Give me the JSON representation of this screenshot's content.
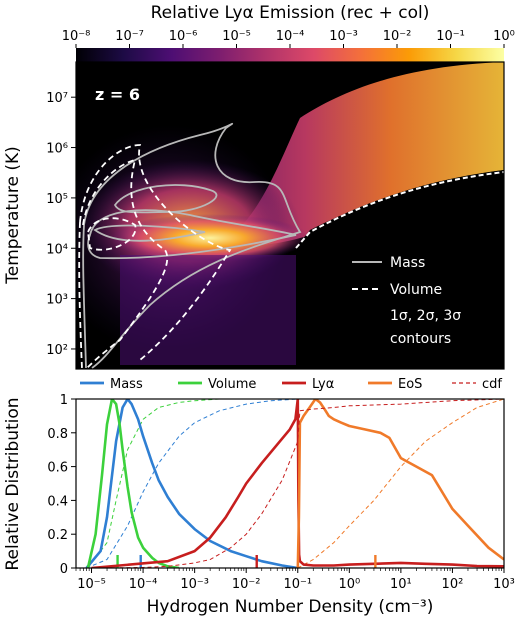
{
  "chart_data": [
    {
      "type": "heatmap",
      "title": "Relative Lyα Emission  (rec + col)",
      "annotation": "z = 6",
      "ylabel": "Temperature  (K)",
      "colorbar": {
        "label": "Relative Lyα Emission  (rec + col)",
        "scale": "log",
        "range": [
          1e-08,
          1
        ],
        "tick_labels": [
          "10⁻⁸",
          "10⁻⁷",
          "10⁻⁶",
          "10⁻⁵",
          "10⁻⁴",
          "10⁻³",
          "10⁻²",
          "10⁻¹",
          "10⁰"
        ],
        "colormap": [
          "#000004",
          "#1d0b45",
          "#4d0e73",
          "#7c1d6f",
          "#b0336a",
          "#dd4968",
          "#f4703a",
          "#fb9b06",
          "#f6d746",
          "#fcffa4"
        ]
      },
      "x_scale": "log",
      "x_range": [
        5e-06,
        1000
      ],
      "y_scale": "log",
      "y_range": [
        40,
        50000000.0
      ],
      "y_tick_labels": [
        "10²",
        "10³",
        "10⁴",
        "10⁵",
        "10⁶",
        "10⁷"
      ],
      "y_tick_values": [
        100,
        1000,
        10000,
        100000,
        1000000,
        10000000
      ],
      "legend": {
        "placement": "center-right",
        "entries": [
          {
            "label": "Mass",
            "style": "solid",
            "color": "#b0b0b0"
          },
          {
            "label": "Volume",
            "style": "dashed",
            "color": "#ffffff"
          }
        ],
        "note_line1": "1σ, 2σ, 3σ",
        "note_line2": "contours"
      }
    },
    {
      "type": "line",
      "xlabel": "Hydrogen Number Density  (cm⁻³)",
      "ylabel": "Relative Distribution",
      "x_scale": "log",
      "x_range": [
        5e-06,
        1000
      ],
      "ylim": [
        0,
        1
      ],
      "grid": false,
      "legend_placement": "top, above plot",
      "x_tick_labels": [
        "10⁻⁵",
        "10⁻⁴",
        "10⁻³",
        "10⁻²",
        "10⁻¹",
        "10⁰",
        "10¹",
        "10²",
        "10³"
      ],
      "x_tick_values": [
        1e-05,
        0.0001,
        0.001,
        0.01,
        0.1,
        1,
        10,
        100,
        1000
      ],
      "y_tick_labels": [
        "0",
        "0.2",
        "0.4",
        "0.6",
        "0.8",
        "1"
      ],
      "y_tick_values": [
        0,
        0.2,
        0.4,
        0.6,
        0.8,
        1
      ],
      "series": [
        {
          "name": "Mass",
          "color": "#2f7fd3",
          "style": "solid",
          "x": [
            8e-06,
            1.5e-05,
            2e-05,
            3e-05,
            4e-05,
            5e-05,
            6e-05,
            8e-05,
            0.0001,
            0.00015,
            0.0002,
            0.0003,
            0.0005,
            0.001,
            0.002,
            0.005,
            0.01,
            0.02,
            0.05,
            0.1
          ],
          "y": [
            0,
            0.1,
            0.3,
            0.75,
            0.95,
            1.0,
            0.97,
            0.88,
            0.78,
            0.62,
            0.52,
            0.42,
            0.32,
            0.23,
            0.16,
            0.1,
            0.07,
            0.04,
            0.015,
            0.0
          ],
          "marker_x": 9e-05
        },
        {
          "name": "Volume",
          "color": "#3cd13c",
          "style": "solid",
          "x": [
            8.5e-06,
            1.2e-05,
            1.6e-05,
            2e-05,
            2.5e-05,
            3e-05,
            3.5e-05,
            4e-05,
            5e-05,
            6e-05,
            8e-05,
            0.0001,
            0.00015,
            0.0002,
            0.0003,
            0.0005
          ],
          "y": [
            0,
            0.2,
            0.55,
            0.85,
            1.0,
            0.97,
            0.85,
            0.7,
            0.48,
            0.33,
            0.18,
            0.12,
            0.06,
            0.03,
            0.01,
            0.0
          ],
          "marker_x": 3.2e-05
        },
        {
          "name": "Lyα",
          "color": "#c71e1e",
          "style": "solid",
          "x": [
            1e-05,
            0.0003,
            0.001,
            0.002,
            0.004,
            0.007,
            0.01,
            0.02,
            0.04,
            0.07,
            0.09,
            0.1,
            0.103,
            0.106,
            0.11,
            0.13,
            0.2,
            0.5,
            1,
            3,
            10,
            30,
            100,
            300,
            1000
          ],
          "y": [
            0,
            0.04,
            0.1,
            0.18,
            0.3,
            0.42,
            0.5,
            0.62,
            0.73,
            0.82,
            0.88,
            1.0,
            0.4,
            0.08,
            0.04,
            0.02,
            0.015,
            0.015,
            0.02,
            0.025,
            0.03,
            0.025,
            0.02,
            0.012,
            0.01
          ],
          "marker_x": 0.016
        },
        {
          "name": "EoS",
          "color": "#f07a2a",
          "style": "solid",
          "x": [
            0.1,
            0.105,
            0.11,
            0.13,
            0.17,
            0.22,
            0.27,
            0.33,
            0.4,
            0.5,
            0.7,
            1,
            2,
            4,
            6,
            10,
            20,
            40,
            100,
            200,
            500,
            1000
          ],
          "y": [
            0,
            0.3,
            0.86,
            0.9,
            0.95,
            1.0,
            0.98,
            0.94,
            0.9,
            0.88,
            0.86,
            0.84,
            0.82,
            0.8,
            0.77,
            0.65,
            0.6,
            0.55,
            0.35,
            0.25,
            0.12,
            0.05
          ],
          "marker_x": 3.2
        },
        {
          "name": "cdf",
          "color": "#c71e1e",
          "style": "dashed",
          "cdf_of": "Lyα",
          "x": [
            1e-05,
            0.0001,
            0.0003,
            0.001,
            0.002,
            0.005,
            0.01,
            0.02,
            0.05,
            0.1,
            0.11,
            0.2,
            0.5,
            1,
            10,
            100,
            1000
          ],
          "y": [
            0,
            0.003,
            0.01,
            0.03,
            0.05,
            0.12,
            0.2,
            0.32,
            0.52,
            0.75,
            0.93,
            0.94,
            0.95,
            0.96,
            0.97,
            0.99,
            1.0
          ]
        }
      ],
      "cdf_curves": [
        {
          "of": "Mass",
          "color": "#2f7fd3",
          "x": [
            8e-06,
            2e-05,
            5e-05,
            0.0001,
            0.0002,
            0.0005,
            0.001,
            0.003,
            0.01,
            0.03,
            0.1
          ],
          "y": [
            0,
            0.05,
            0.25,
            0.45,
            0.62,
            0.78,
            0.86,
            0.93,
            0.97,
            0.99,
            1.0
          ]
        },
        {
          "of": "Volume",
          "color": "#3cd13c",
          "x": [
            8.5e-06,
            2e-05,
            3e-05,
            5e-05,
            0.0001,
            0.0002,
            0.0005,
            0.001,
            0.003
          ],
          "y": [
            0,
            0.15,
            0.4,
            0.7,
            0.88,
            0.95,
            0.98,
            0.99,
            1.0
          ]
        },
        {
          "of": "EoS",
          "color": "#f07a2a",
          "x": [
            0.1,
            0.2,
            0.5,
            1,
            3,
            10,
            30,
            100,
            300,
            1000
          ],
          "y": [
            0,
            0.05,
            0.15,
            0.25,
            0.4,
            0.6,
            0.75,
            0.86,
            0.95,
            1.0
          ]
        }
      ],
      "legend_entries": [
        {
          "label": "Mass",
          "color": "#2f7fd3",
          "style": "solid"
        },
        {
          "label": "Volume",
          "color": "#3cd13c",
          "style": "solid"
        },
        {
          "label": "Lyα",
          "color": "#c71e1e",
          "style": "solid"
        },
        {
          "label": "EoS",
          "color": "#f07a2a",
          "style": "solid"
        },
        {
          "label": "cdf",
          "color": "#c71e1e",
          "style": "dashed"
        }
      ]
    }
  ]
}
